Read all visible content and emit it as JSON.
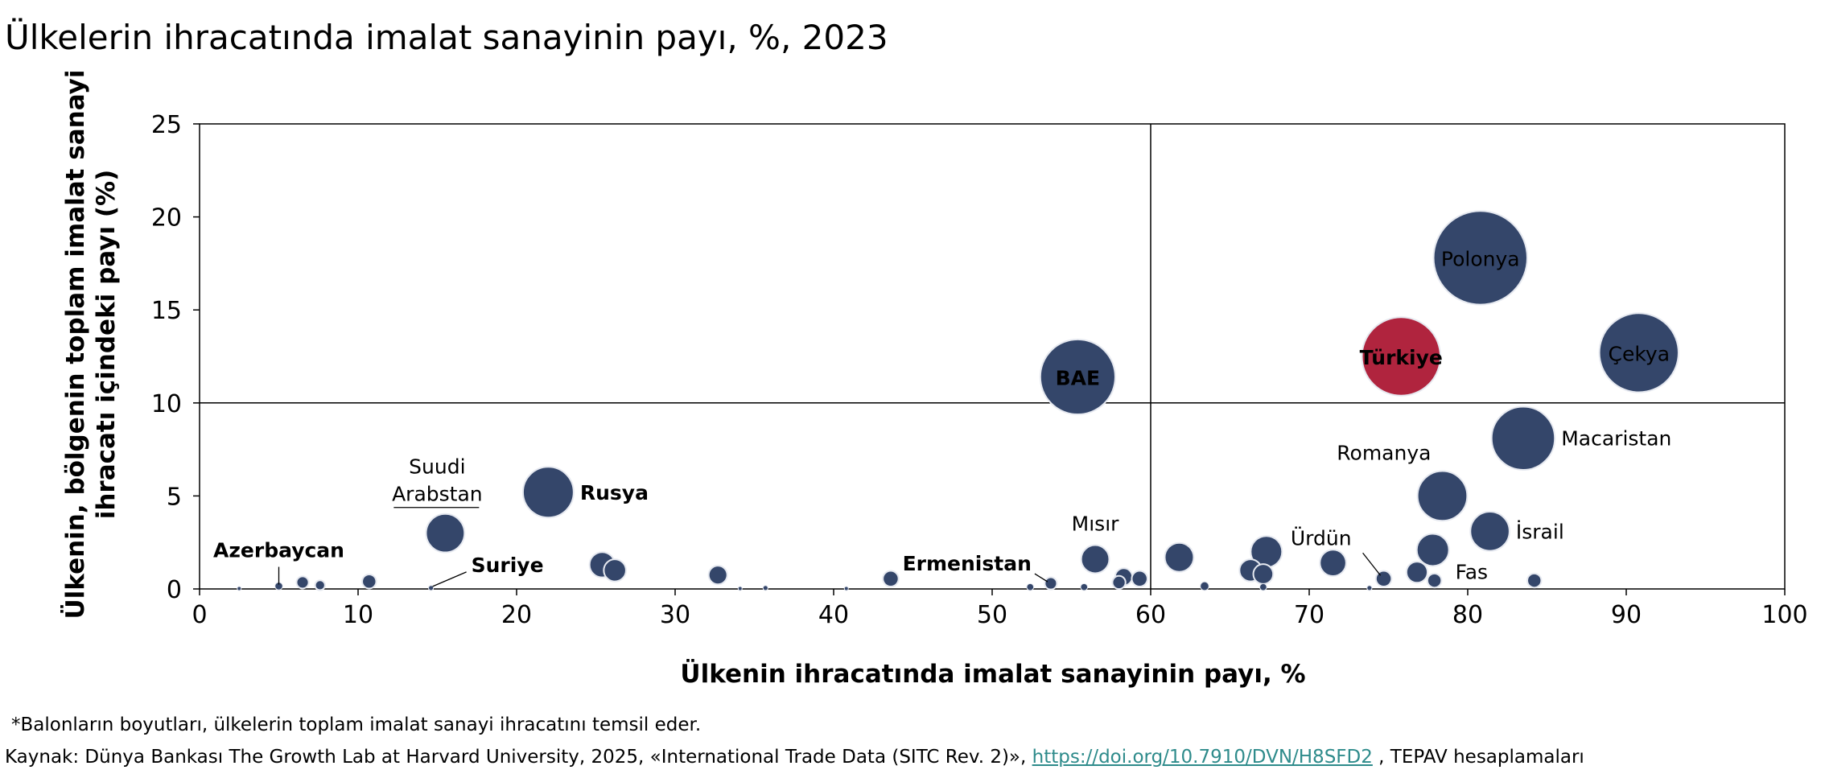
{
  "title": "Ülkelerin ihracatında imalat sanayinin payı, %, 2023",
  "footnote": "*Balonların boyutları, ülkelerin toplam imalat sanayi ihracatını temsil eder.",
  "source": {
    "prefix": "Kaynak: Dünya Bankası The Growth Lab at Harvard University, 2025, «International Trade Data (SITC Rev. 2)», ",
    "link": "https://doi.org/10.7910/DVN/H8SFD2",
    "suffix": " , TEPAV hesaplamaları"
  },
  "colors": {
    "bubble": "#34466a",
    "highlight": "#b0243e",
    "bubble_stroke": "#e6e9f0",
    "link": "#2e8b8b"
  },
  "chart_data": {
    "type": "bubble",
    "xlabel": "Ülkenin ihracatında imalat sanayinin payı, %",
    "ylabel_lines": [
      "Ülkenin, bölgenin toplam imalat sanayi",
      "ihracatı içindeki payı (%)"
    ],
    "xlim": [
      0,
      100
    ],
    "ylim": [
      0,
      25
    ],
    "xticks": [
      "0",
      "10",
      "20",
      "30",
      "40",
      "50",
      "60",
      "70",
      "80",
      "90",
      "100"
    ],
    "yticks": [
      "0",
      "5",
      "10",
      "15",
      "20",
      "25"
    ],
    "reference_lines": {
      "x": 60,
      "y": 10
    },
    "points": [
      {
        "x": 80.8,
        "y": 17.8,
        "size": 17.8,
        "label": "Polonya",
        "label_mode": "inside"
      },
      {
        "x": 90.8,
        "y": 12.7,
        "size": 12.7,
        "label": "Çekya",
        "label_mode": "inside"
      },
      {
        "x": 75.8,
        "y": 12.5,
        "size": 12.5,
        "label": "Türkiye",
        "label_mode": "inside",
        "bold": true,
        "highlight": true
      },
      {
        "x": 55.4,
        "y": 11.4,
        "size": 11.4,
        "label": "BAE",
        "label_mode": "inside",
        "bold": true
      },
      {
        "x": 83.5,
        "y": 8.1,
        "size": 8.1,
        "label": "Macaristan",
        "label_mode": "right"
      },
      {
        "x": 78.4,
        "y": 5.0,
        "size": 5.0,
        "label": "Romanya",
        "label_mode": "left-above"
      },
      {
        "x": 22.0,
        "y": 5.2,
        "size": 5.2,
        "label": "Rusya",
        "label_mode": "right",
        "bold": true
      },
      {
        "x": 81.4,
        "y": 3.1,
        "size": 3.1,
        "label": "İsrail",
        "label_mode": "right"
      },
      {
        "x": 15.5,
        "y": 3.0,
        "size": 3.0,
        "label_lines": [
          "Suudi",
          "Arabstan"
        ],
        "label_mode": "above-two"
      },
      {
        "x": 77.8,
        "y": 2.1,
        "size": 2.1
      },
      {
        "x": 67.3,
        "y": 2.0,
        "size": 2.0
      },
      {
        "x": 61.8,
        "y": 1.7,
        "size": 1.7
      },
      {
        "x": 56.5,
        "y": 1.6,
        "size": 1.6,
        "label": "Mısır",
        "label_mode": "above"
      },
      {
        "x": 71.5,
        "y": 1.4,
        "size": 1.4
      },
      {
        "x": 25.4,
        "y": 1.3,
        "size": 1.3
      },
      {
        "x": 26.2,
        "y": 1.0,
        "size": 1.0
      },
      {
        "x": 66.3,
        "y": 1.0,
        "size": 1.0
      },
      {
        "x": 76.8,
        "y": 0.9,
        "size": 0.9
      },
      {
        "x": 67.1,
        "y": 0.8,
        "size": 0.8
      },
      {
        "x": 32.7,
        "y": 0.75,
        "size": 0.7
      },
      {
        "x": 58.3,
        "y": 0.65,
        "size": 0.6
      },
      {
        "x": 59.3,
        "y": 0.55,
        "size": 0.5
      },
      {
        "x": 43.6,
        "y": 0.55,
        "size": 0.5
      },
      {
        "x": 74.7,
        "y": 0.55,
        "size": 0.5,
        "label": "Ürdün",
        "label_mode": "leader-up-left"
      },
      {
        "x": 84.2,
        "y": 0.45,
        "size": 0.4
      },
      {
        "x": 77.9,
        "y": 0.45,
        "size": 0.4,
        "label": "Fas",
        "label_mode": "right-low"
      },
      {
        "x": 10.7,
        "y": 0.4,
        "size": 0.4
      },
      {
        "x": 58.0,
        "y": 0.35,
        "size": 0.35
      },
      {
        "x": 6.5,
        "y": 0.35,
        "size": 0.3
      },
      {
        "x": 53.7,
        "y": 0.3,
        "size": 0.3,
        "label": "Ermenistan",
        "label_mode": "leader-left",
        "bold": true
      },
      {
        "x": 7.6,
        "y": 0.2,
        "size": 0.2
      },
      {
        "x": 63.4,
        "y": 0.15,
        "size": 0.15
      },
      {
        "x": 5.0,
        "y": 0.15,
        "size": 0.12,
        "label": "Azerbaycan",
        "label_mode": "leader-up",
        "bold": true
      },
      {
        "x": 14.6,
        "y": 0.05,
        "size": 0.05,
        "label": "Suriye",
        "label_mode": "leader-up-right",
        "bold": true
      },
      {
        "x": 55.8,
        "y": 0.1,
        "size": 0.1
      },
      {
        "x": 52.4,
        "y": 0.1,
        "size": 0.1
      },
      {
        "x": 67.1,
        "y": 0.1,
        "size": 0.1
      },
      {
        "x": 73.8,
        "y": 0.05,
        "size": 0.05
      },
      {
        "x": 35.7,
        "y": 0.05,
        "size": 0.05
      },
      {
        "x": 2.5,
        "y": 0.02,
        "size": 0.03
      },
      {
        "x": 40.8,
        "y": 0.02,
        "size": 0.03
      },
      {
        "x": 34.1,
        "y": 0.02,
        "size": 0.03
      }
    ]
  }
}
